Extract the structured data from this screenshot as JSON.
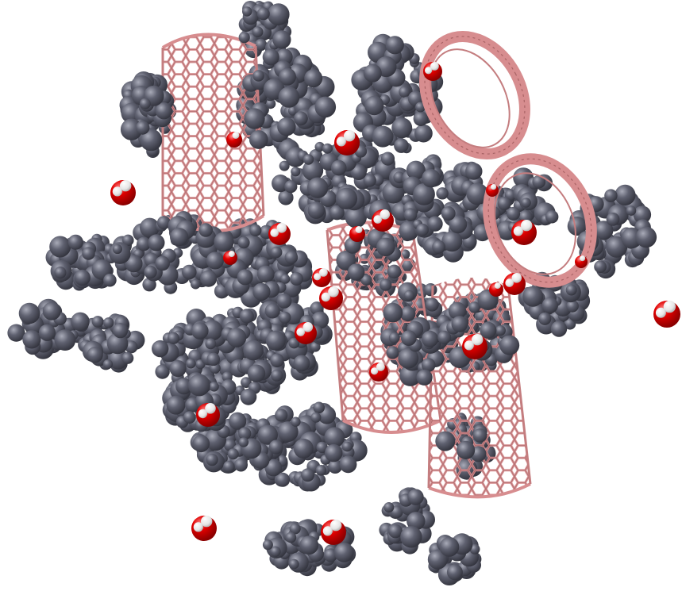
{
  "scene": {
    "subject": "molecular-dynamics-render",
    "background_color": "#ffffff",
    "colors": {
      "carbon_sphere": "#5a5c6b",
      "carbon_sphere_highlight": "#a9abb8",
      "carbon_sphere_shadow": "#34353f",
      "nanotube_bond": "#d78d8f",
      "nanotube_bond_dark": "#a96466",
      "oxygen": "#e00000",
      "oxygen_highlight": "#ff8a8a",
      "hydrogen": "#ffffff"
    },
    "components": [
      "carbon-nanotube",
      "hydrocarbon-molecule",
      "water-molecule"
    ],
    "counts": {
      "nanotubes": 5,
      "water_molecules": 22
    }
  }
}
